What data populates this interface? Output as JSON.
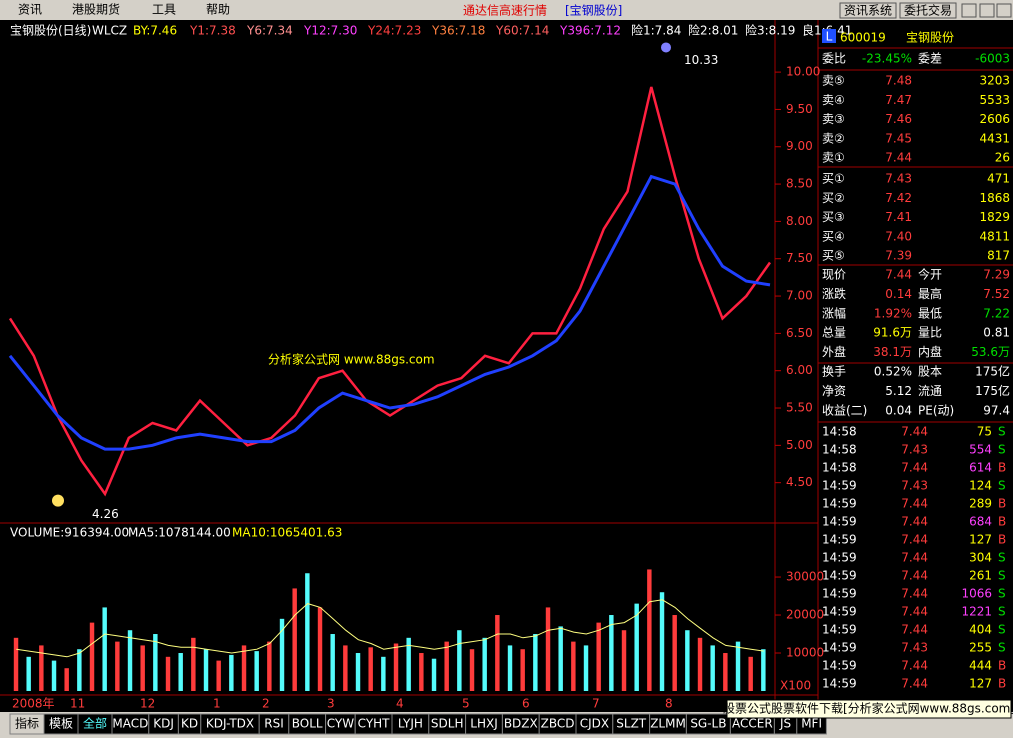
{
  "menu": [
    "资讯",
    "港股期货",
    "工具",
    "帮助"
  ],
  "title": "通达信高速行情",
  "title_stock": "[宝钢股份]",
  "buttons": [
    "资讯系统",
    "委托交易"
  ],
  "chart_header": {
    "name": "宝钢股份(日线)",
    "indicator": "WLCZ",
    "items": [
      "BY:7.46",
      "Y1:7.38",
      "Y6:7.34",
      "Y12:7.30",
      "Y24:7.23",
      "Y36:7.18",
      "Y60:7.14",
      "Y396:7.12",
      "险1:7.84",
      "险2:8.01",
      "险3:8.19",
      "良1:6.41"
    ],
    "colors": [
      "#ffff00",
      "#ff5050",
      "#ff9090",
      "#ff40ff",
      "#ff4040",
      "#ff8040",
      "#ff6060",
      "#ff40ff",
      "#ffffff",
      "#ffffff",
      "#ffffff",
      "#ffffff"
    ]
  },
  "price_chart": {
    "type": "line",
    "ylim": [
      4.0,
      10.43
    ],
    "yticks": [
      {
        "value": 10,
        "label": "10.00"
      },
      {
        "value": 9.5,
        "label": "9.50"
      },
      {
        "value": 9,
        "label": "9.00"
      },
      {
        "value": 8.5,
        "label": "8.50"
      },
      {
        "value": 8,
        "label": "8.00"
      },
      {
        "value": 7.5,
        "label": "7.50"
      },
      {
        "value": 7,
        "label": "7.00"
      },
      {
        "value": 6.5,
        "label": "6.50"
      },
      {
        "value": 6,
        "label": "6.00"
      },
      {
        "value": 5.5,
        "label": "5.50"
      },
      {
        "value": 5,
        "label": "5.00"
      },
      {
        "value": 4.5,
        "label": "4.50"
      }
    ],
    "series": [
      {
        "color": "#ff2040",
        "values": [
          6.7,
          6.2,
          5.4,
          4.8,
          4.35,
          5.1,
          5.3,
          5.2,
          5.6,
          5.3,
          5.0,
          5.1,
          5.4,
          5.9,
          6.0,
          5.6,
          5.4,
          5.6,
          5.8,
          5.9,
          6.2,
          6.1,
          6.5,
          6.5,
          7.1,
          7.9,
          8.4,
          9.8,
          8.6,
          7.5,
          6.7,
          7.0,
          7.45
        ]
      },
      {
        "color": "#2040ff",
        "values": [
          6.2,
          5.8,
          5.4,
          5.1,
          4.95,
          4.95,
          5.0,
          5.1,
          5.15,
          5.1,
          5.05,
          5.05,
          5.2,
          5.5,
          5.7,
          5.6,
          5.5,
          5.55,
          5.65,
          5.8,
          5.95,
          6.05,
          6.2,
          6.4,
          6.8,
          7.4,
          8.0,
          8.6,
          8.5,
          7.9,
          7.4,
          7.2,
          7.15
        ]
      }
    ],
    "high": 10.33,
    "low": 4.26,
    "watermark": "分析家公式网 www.88gs.com"
  },
  "volume_chart": {
    "type": "bar",
    "items": [
      "VOLUME:916394.00",
      "MA5:1078144.00",
      "MA10:1065401.63"
    ],
    "item_colors": [
      "#ffffff",
      "#ffffff",
      "#ffff00"
    ],
    "ylim": [
      0,
      43700
    ],
    "yticks": [
      10000,
      20000,
      30000
    ],
    "unit": "X100",
    "colors": [
      "#ff3c3c",
      "#54fcfc"
    ],
    "values": [
      14000,
      9000,
      12000,
      8000,
      6000,
      11000,
      18000,
      22000,
      13000,
      16000,
      12000,
      15000,
      9000,
      10000,
      14000,
      11000,
      8000,
      9500,
      12000,
      10500,
      13000,
      19000,
      27000,
      31000,
      22000,
      15000,
      12000,
      10000,
      11500,
      9000,
      12500,
      14000,
      10000,
      8500,
      13000,
      16000,
      11000,
      14000,
      20000,
      12000,
      11000,
      15000,
      22000,
      17000,
      13000,
      12000,
      18000,
      20000,
      16000,
      23000,
      32000,
      26000,
      20000,
      16000,
      14000,
      12000,
      10000,
      13000,
      9000,
      11000
    ],
    "ma": [
      11000,
      10500,
      10000,
      9500,
      9000,
      10000,
      12500,
      15000,
      14500,
      14000,
      13500,
      13000,
      12000,
      11500,
      11500,
      11000,
      10500,
      10000,
      10500,
      11000,
      12500,
      16000,
      20000,
      23000,
      22000,
      19000,
      16000,
      13500,
      12500,
      11000,
      11500,
      12000,
      11500,
      11000,
      11500,
      12500,
      13000,
      13500,
      15000,
      15000,
      14000,
      14500,
      16000,
      16500,
      15500,
      15000,
      16000,
      17500,
      18000,
      20000,
      23500,
      24000,
      22000,
      19000,
      16500,
      14000,
      12000,
      11500,
      11000,
      10500
    ]
  },
  "months": [
    "2008年",
    "11",
    "12",
    "1",
    "2",
    "3",
    "4",
    "5",
    "6",
    "7",
    "8"
  ],
  "tabs": [
    "指标",
    "模板",
    "全部",
    "MACD",
    "KDJ",
    "KD",
    "KDJ-TDX",
    "RSI",
    "BOLL",
    "CYW",
    "CYHT",
    "LYJH",
    "SDLH",
    "LHXJ",
    "BDZX",
    "ZBCD",
    "CJDX",
    "SLZT",
    "ZLMM",
    "SG-LB",
    "ACCER",
    "JS",
    "MFI"
  ],
  "footer_ad": "股票公式股票软件下载[分析家公式网www.88gs.com]",
  "quote": {
    "badge": "L",
    "code": "600019",
    "name": "宝钢股份",
    "ratio": [
      "委比",
      "-23.45%",
      "委差",
      "-6003"
    ],
    "asks": [
      [
        "卖⑤",
        "7.48",
        "3203"
      ],
      [
        "卖④",
        "7.47",
        "5533"
      ],
      [
        "卖③",
        "7.46",
        "2606"
      ],
      [
        "卖②",
        "7.45",
        "4431"
      ],
      [
        "卖①",
        "7.44",
        "26"
      ]
    ],
    "bids": [
      [
        "买①",
        "7.43",
        "471"
      ],
      [
        "买②",
        "7.42",
        "1868"
      ],
      [
        "买③",
        "7.41",
        "1829"
      ],
      [
        "买④",
        "7.40",
        "4811"
      ],
      [
        "买⑤",
        "7.39",
        "817"
      ]
    ],
    "summary": [
      [
        "现价",
        "7.44",
        "今开",
        "7.29"
      ],
      [
        "涨跌",
        "0.14",
        "最高",
        "7.52"
      ],
      [
        "涨幅",
        "1.92%",
        "最低",
        "7.22"
      ],
      [
        "总量",
        "91.6万",
        "量比",
        "0.81"
      ],
      [
        "外盘",
        "38.1万",
        "内盘",
        "53.6万"
      ],
      [
        "换手",
        "0.52%",
        "股本",
        "175亿"
      ],
      [
        "净资",
        "5.12",
        "流通",
        "175亿"
      ],
      [
        "收益(二)",
        "0.04",
        "PE(动)",
        "97.4"
      ]
    ],
    "summary_colors": [
      [
        "#ff3c3c",
        "#ff3c3c"
      ],
      [
        "#ff3c3c",
        "#ff3c3c"
      ],
      [
        "#ff3c3c",
        "#00e000"
      ],
      [
        "#ffff00",
        "#ffffff"
      ],
      [
        "#ff3c3c",
        "#00e000"
      ],
      [
        "#ffffff",
        "#ffffff"
      ],
      [
        "#ffffff",
        "#ffffff"
      ],
      [
        "#ffffff",
        "#ffffff"
      ]
    ],
    "ticks": [
      [
        "14:58",
        "7.44",
        "75",
        "S"
      ],
      [
        "14:58",
        "7.43",
        "554",
        "S"
      ],
      [
        "14:58",
        "7.44",
        "614",
        "B"
      ],
      [
        "14:59",
        "7.43",
        "124",
        "S"
      ],
      [
        "14:59",
        "7.44",
        "289",
        "B"
      ],
      [
        "14:59",
        "7.44",
        "684",
        "B"
      ],
      [
        "14:59",
        "7.44",
        "127",
        "B"
      ],
      [
        "14:59",
        "7.44",
        "304",
        "S"
      ],
      [
        "14:59",
        "7.44",
        "261",
        "S"
      ],
      [
        "14:59",
        "7.44",
        "1066",
        "S"
      ],
      [
        "14:59",
        "7.44",
        "1221",
        "S"
      ],
      [
        "14:59",
        "7.44",
        "404",
        "S"
      ],
      [
        "14:59",
        "7.43",
        "255",
        "S"
      ],
      [
        "14:59",
        "7.44",
        "444",
        "B"
      ],
      [
        "14:59",
        "7.44",
        "127",
        "B"
      ]
    ]
  }
}
